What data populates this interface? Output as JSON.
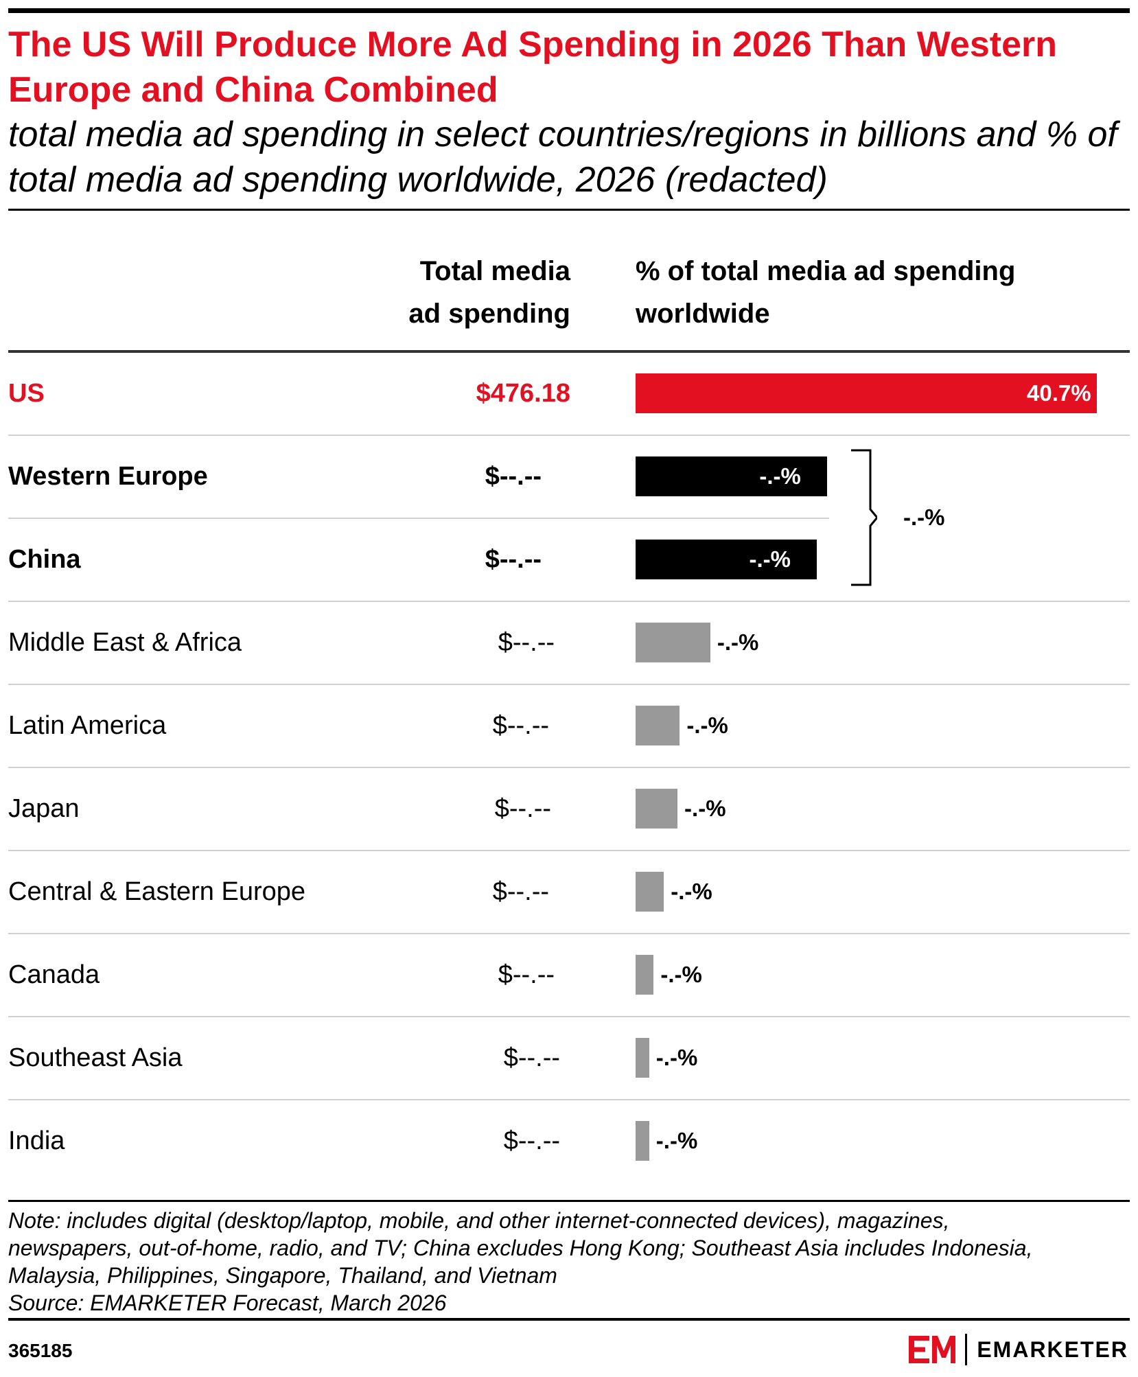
{
  "chart_data": {
    "type": "bar",
    "orientation": "horizontal",
    "title": "The US Will Produce More Ad Spending in 2026 Than Western Europe and China Combined",
    "subtitle": "total media ad spending in select countries/regions in billions and % of total media ad spending worldwide, 2026 (redacted)",
    "columns": [
      "Total media ad spending",
      "% of total media ad spending worldwide"
    ],
    "rows": [
      {
        "name": "US",
        "spend_label": "$476.18",
        "pct_label": "40.7%",
        "pct": 40.7,
        "style": "highlight"
      },
      {
        "name": "Western Europe",
        "spend_label": "$--.--",
        "pct_label": "-.-%",
        "pct": 16.9,
        "style": "bold"
      },
      {
        "name": "China",
        "spend_label": "$--.--",
        "pct_label": "-.-%",
        "pct": 16.0,
        "style": "bold"
      },
      {
        "name": "Middle East & Africa",
        "spend_label": "$--.--",
        "pct_label": "-.-%",
        "pct": 6.6,
        "style": "normal"
      },
      {
        "name": "Latin America",
        "spend_label": "$--.--",
        "pct_label": "-.-%",
        "pct": 3.9,
        "style": "normal"
      },
      {
        "name": "Japan",
        "spend_label": "$--.--",
        "pct_label": "-.-%",
        "pct": 3.7,
        "style": "normal"
      },
      {
        "name": "Central & Eastern Europe",
        "spend_label": "$--.--",
        "pct_label": "-.-%",
        "pct": 2.5,
        "style": "normal"
      },
      {
        "name": "Canada",
        "spend_label": "$--.--",
        "pct_label": "-.-%",
        "pct": 1.6,
        "style": "normal"
      },
      {
        "name": "Southeast Asia",
        "spend_label": "$--.--",
        "pct_label": "-.-%",
        "pct": 1.2,
        "style": "normal"
      },
      {
        "name": "India",
        "spend_label": "$--.--",
        "pct_label": "-.-%",
        "pct": 1.2,
        "style": "normal"
      }
    ],
    "combined": {
      "rows": [
        "Western Europe",
        "China"
      ],
      "label": "-.-%"
    },
    "colors": {
      "highlight": "#e31021",
      "bold": "#000000",
      "normal": "#999999"
    }
  },
  "header": {
    "title": "The US Will Produce More Ad Spending in 2026 Than Western Europe and China Combined",
    "subtitle": "total media ad spending in select countries/regions in billions and % of total media ad spending worldwide, 2026 (redacted)",
    "spend_header_line1": "Total media",
    "spend_header_line2": "ad spending",
    "pct_header_line1": "% of total media ad spending",
    "pct_header_line2": "worldwide"
  },
  "footer": {
    "note_line1": "Note: includes digital (desktop/laptop, mobile, and other internet-connected devices), magazines,",
    "note_line2": "newspapers, out-of-home, radio, and TV; China excludes Hong Kong; Southeast Asia includes Indonesia,",
    "note_line3": "Malaysia, Philippines, Singapore, Thailand, and Vietnam",
    "source": "Source: EMARKETER Forecast, March 2026",
    "chart_id": "365185",
    "brand_mark": "EM",
    "brand_name": "EMARKETER"
  }
}
